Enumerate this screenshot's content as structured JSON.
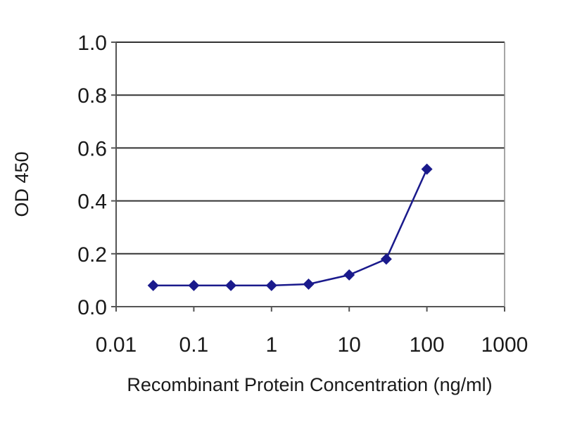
{
  "chart_data": {
    "type": "line",
    "title": "",
    "xlabel": "Recombinant Protein Concentration (ng/ml)",
    "ylabel": "OD 450",
    "x_scale": "log",
    "xlim": [
      0.01,
      1000
    ],
    "ylim": [
      0,
      1.0
    ],
    "x_ticks": [
      0.01,
      0.1,
      1,
      10,
      100,
      1000
    ],
    "x_tick_labels": [
      "0.01",
      "0.1",
      "1",
      "10",
      "100",
      "1000"
    ],
    "y_ticks": [
      0,
      0.2,
      0.4,
      0.6,
      0.8,
      1.0
    ],
    "y_tick_labels": [
      "0.0",
      "0.2",
      "0.4",
      "0.6",
      "0.8",
      "1.0"
    ],
    "grid": "horizontal",
    "series": [
      {
        "color": "#1a1a8c",
        "marker": "diamond",
        "x": [
          0.03,
          0.1,
          0.3,
          1,
          3,
          10,
          30,
          100
        ],
        "y": [
          0.08,
          0.08,
          0.08,
          0.08,
          0.085,
          0.12,
          0.18,
          0.52
        ]
      }
    ]
  }
}
